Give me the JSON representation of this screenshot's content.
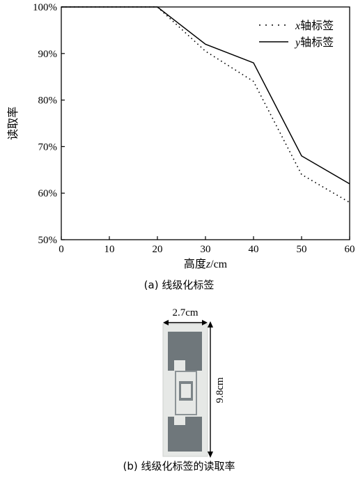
{
  "chart_data": {
    "type": "line",
    "title": "",
    "xlabel": "高度z/cm",
    "ylabel": "读取率",
    "xlim": [
      0,
      60
    ],
    "ylim": [
      50,
      100
    ],
    "xticks": [
      "0",
      "10",
      "20",
      "30",
      "40",
      "50",
      "60"
    ],
    "yticks": [
      "50%",
      "60%",
      "70%",
      "80%",
      "90%",
      "100%"
    ],
    "legend_placement": "top-right",
    "grid": false,
    "series": [
      {
        "name": "x轴标签",
        "style": "dotted",
        "color": "#000000",
        "x": [
          0,
          10,
          20,
          30,
          40,
          50,
          60
        ],
        "y": [
          100,
          100,
          100,
          90.5,
          84,
          64,
          58
        ]
      },
      {
        "name": "y轴标签",
        "style": "solid",
        "color": "#000000",
        "x": [
          0,
          10,
          20,
          30,
          40,
          50,
          60
        ],
        "y": [
          100,
          100,
          100,
          92,
          88,
          68,
          62
        ]
      }
    ]
  },
  "legend": {
    "x_label_var": "x",
    "x_label_rest": "轴标签",
    "y_label_var": "y",
    "y_label_rest": "轴标签"
  },
  "captions": {
    "a": "(a) 线级化标签",
    "b": "(b) 线级化标签的读取率"
  },
  "photo": {
    "width_label": "2.7cm",
    "height_label": "9.8cm"
  }
}
